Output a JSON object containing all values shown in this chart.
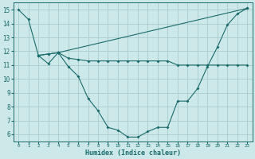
{
  "bg_color": "#cce8e8",
  "grid_color": "#aacccc",
  "line_color": "#1a6b6b",
  "xlabel": "Humidex (Indice chaleur)",
  "xlim": [
    -0.5,
    23.5
  ],
  "ylim": [
    5.5,
    15.5
  ],
  "yticks": [
    6,
    7,
    8,
    9,
    10,
    11,
    12,
    13,
    14,
    15
  ],
  "xticks": [
    0,
    1,
    2,
    3,
    4,
    5,
    6,
    7,
    8,
    9,
    10,
    11,
    12,
    13,
    14,
    15,
    16,
    17,
    18,
    19,
    20,
    21,
    22,
    23
  ],
  "series1_x": [
    0,
    1,
    2,
    3,
    4,
    23
  ],
  "series1_y": [
    15.0,
    14.3,
    11.7,
    11.8,
    11.9,
    15.1
  ],
  "series2_x": [
    2,
    3,
    4,
    5,
    6,
    7,
    8,
    9,
    10,
    11,
    12,
    13,
    14,
    15,
    16,
    17,
    18,
    19,
    20,
    21,
    22,
    23
  ],
  "series2_y": [
    11.7,
    11.1,
    11.9,
    10.9,
    10.2,
    8.6,
    7.7,
    6.5,
    6.3,
    5.8,
    5.8,
    6.2,
    6.5,
    6.5,
    8.4,
    8.4,
    9.3,
    10.9,
    12.3,
    13.9,
    14.7,
    15.1
  ],
  "series3_x": [
    2,
    3,
    4,
    5,
    6,
    7,
    8,
    9,
    10,
    11,
    12,
    13,
    14,
    15,
    16,
    17,
    18,
    19,
    20,
    21,
    22,
    23
  ],
  "series3_y": [
    11.7,
    11.8,
    11.9,
    11.5,
    11.4,
    11.3,
    11.3,
    11.3,
    11.3,
    11.3,
    11.3,
    11.3,
    11.3,
    11.3,
    11.0,
    11.0,
    11.0,
    11.0,
    11.0,
    11.0,
    11.0,
    11.0
  ],
  "marker_size": 2.0,
  "linewidth": 0.8
}
